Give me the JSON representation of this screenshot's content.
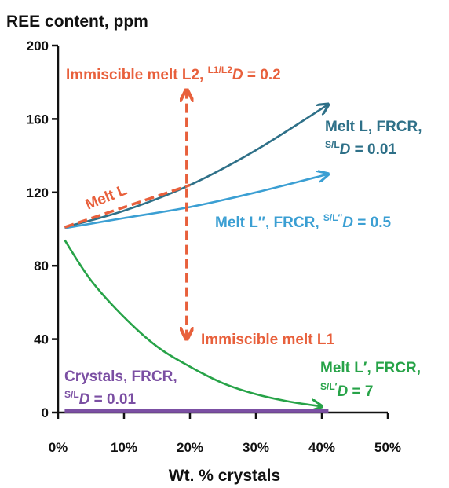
{
  "chart_data": {
    "type": "line",
    "ylabel": "REE content, ppm",
    "xlabel": "Wt. % crystals",
    "xlim": [
      0,
      50
    ],
    "ylim": [
      0,
      200
    ],
    "x_ticks": [
      "0%",
      "10%",
      "20%",
      "30%",
      "40%",
      "50%"
    ],
    "y_ticks": [
      "0",
      "40",
      "80",
      "120",
      "160",
      "200"
    ],
    "grid": false,
    "series": [
      {
        "key": "meltL",
        "color": "#2e7088",
        "points": [
          [
            1,
            101
          ],
          [
            10,
            110
          ],
          [
            20,
            124
          ],
          [
            30,
            143
          ],
          [
            41,
            168
          ]
        ]
      },
      {
        "key": "meltL2",
        "color": "#3b9fd3",
        "points": [
          [
            1,
            100.5
          ],
          [
            10,
            106
          ],
          [
            20,
            112
          ],
          [
            30,
            120
          ],
          [
            41,
            130
          ]
        ]
      },
      {
        "key": "meltL1",
        "color": "#27a348",
        "points": [
          [
            1,
            94
          ],
          [
            5,
            72
          ],
          [
            10,
            52
          ],
          [
            15,
            36
          ],
          [
            20,
            25
          ],
          [
            25,
            16
          ],
          [
            30,
            10
          ],
          [
            35,
            6
          ],
          [
            40,
            3.3
          ]
        ]
      },
      {
        "key": "crystals",
        "color": "#7b4fa3",
        "points": [
          [
            1,
            0.9
          ],
          [
            41,
            0.9
          ]
        ]
      }
    ],
    "dashed_arrows": {
      "color": "#e8603c",
      "meltL_segment": [
        [
          1,
          101
        ],
        [
          20,
          124
        ]
      ],
      "vertical_x": 19.5,
      "vertical_y_range": [
        40,
        176
      ]
    },
    "annotations": {
      "immiscible_L2": {
        "main": "Immiscible melt L2, ",
        "sup": "L1/L2",
        "d": "D",
        "tail": " = 0.2",
        "color": "#e8603c"
      },
      "melt_L_label": {
        "text": "Melt L",
        "color": "#e8603c"
      },
      "melt_L_frcr": {
        "line1": "Melt L, FRCR,",
        "sup": "S/L",
        "d": "D",
        "tail": " = 0.01",
        "color": "#2e7088"
      },
      "melt_L2_frcr": {
        "main": "Melt L″, FRCR, ",
        "sup": "S/L″",
        "d": "D",
        "tail": " = 0.5",
        "color": "#3b9fd3"
      },
      "immiscible_L1": {
        "text": "Immiscible melt L1",
        "color": "#e8603c"
      },
      "crystals_frcr": {
        "line1": "Crystals, FRCR,",
        "sup": "S/L",
        "d": "D",
        "tail": " = 0.01",
        "color": "#7b4fa3"
      },
      "melt_L1_frcr": {
        "line1": "Melt L′, FRCR,",
        "sup": "S/L′",
        "d": "D",
        "tail": " = 7",
        "color": "#27a348"
      }
    }
  }
}
